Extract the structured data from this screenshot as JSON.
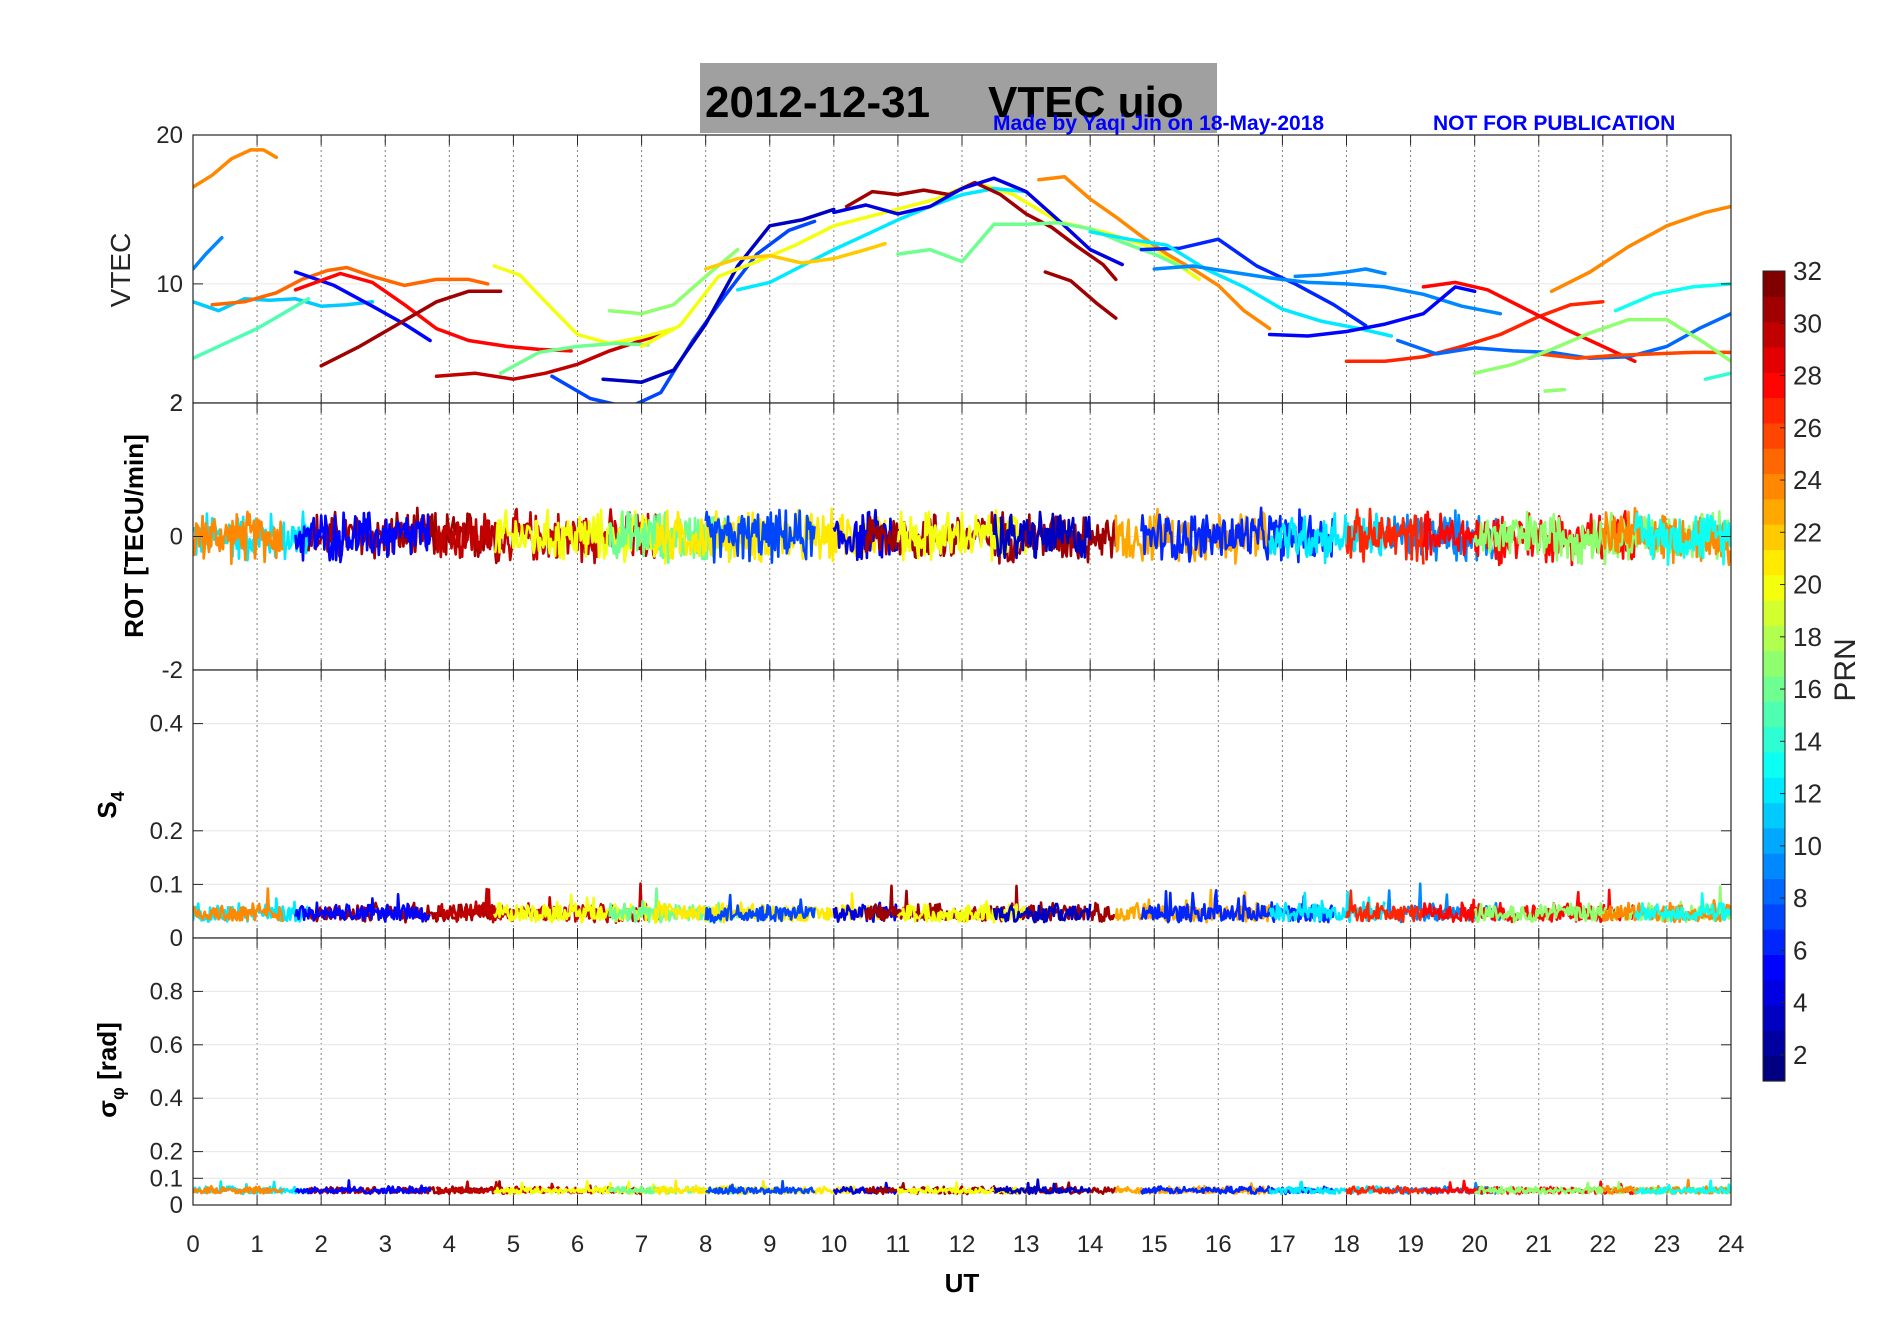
{
  "chart_data": {
    "type": "line",
    "title_date": "2012-12-31",
    "title_name": "VTEC  uio",
    "credit": "Made by Yaqi Jin on 18-May-2018",
    "notice": "NOT FOR PUBLICATION",
    "xlabel": "UT",
    "xlim": [
      0,
      24
    ],
    "xticks": [
      "0",
      "1",
      "2",
      "3",
      "4",
      "5",
      "6",
      "7",
      "8",
      "9",
      "10",
      "11",
      "12",
      "13",
      "14",
      "15",
      "16",
      "17",
      "18",
      "19",
      "20",
      "21",
      "22",
      "23",
      "24"
    ],
    "colorbar": {
      "label": "PRN",
      "range": [
        1,
        32
      ],
      "ticks": [
        "2",
        "4",
        "6",
        "8",
        "10",
        "12",
        "14",
        "16",
        "18",
        "20",
        "22",
        "24",
        "26",
        "28",
        "30",
        "32"
      ]
    },
    "panels": [
      {
        "id": "vtec",
        "ylabel": "VTEC",
        "ylim": [
          2,
          20
        ],
        "yticks": [
          "2",
          "10",
          "20"
        ],
        "series": [
          {
            "prn": 24,
            "x": [
              0.0,
              0.3,
              0.6,
              0.9,
              1.1,
              1.3
            ],
            "y": [
              16.5,
              17.3,
              18.4,
              19.0,
              19.0,
              18.5
            ]
          },
          {
            "prn": 9,
            "x": [
              0.0,
              0.2,
              0.45
            ],
            "y": [
              11.0,
              12.0,
              13.1
            ]
          },
          {
            "prn": 11,
            "x": [
              0.0,
              0.4,
              0.8,
              1.2,
              1.6,
              2.0,
              2.4,
              2.8
            ],
            "y": [
              8.8,
              8.2,
              9.0,
              8.9,
              9.0,
              8.5,
              8.6,
              8.8
            ]
          },
          {
            "prn": 15,
            "x": [
              0.0,
              0.5,
              1.0,
              1.4,
              1.8
            ],
            "y": [
              5.0,
              6.0,
              7.0,
              8.0,
              9.0
            ]
          },
          {
            "prn": 25,
            "x": [
              0.3,
              0.8,
              1.3,
              1.7,
              2.1,
              2.4,
              2.8,
              3.3,
              3.8,
              4.3,
              4.6
            ],
            "y": [
              8.6,
              8.8,
              9.4,
              10.3,
              10.9,
              11.1,
              10.5,
              9.9,
              10.3,
              10.3,
              10.0
            ]
          },
          {
            "prn": 5,
            "x": [
              1.6,
              2.2,
              2.8,
              3.3,
              3.7
            ],
            "y": [
              10.8,
              9.9,
              8.5,
              7.3,
              6.2
            ]
          },
          {
            "prn": 28,
            "x": [
              1.6,
              2.3,
              2.8,
              3.3,
              3.8,
              4.3,
              4.9,
              5.4,
              5.9
            ],
            "y": [
              9.6,
              10.7,
              10.1,
              8.6,
              7.0,
              6.2,
              5.8,
              5.6,
              5.5
            ]
          },
          {
            "prn": 31,
            "x": [
              2.0,
              2.6,
              3.2,
              3.8,
              4.3,
              4.8
            ],
            "y": [
              4.5,
              5.8,
              7.3,
              8.8,
              9.5,
              9.5
            ]
          },
          {
            "prn": 30,
            "x": [
              3.8,
              4.4,
              5.0,
              5.5,
              6.0,
              6.5,
              7.0,
              7.3
            ],
            "y": [
              3.8,
              4.0,
              3.6,
              4.0,
              4.6,
              5.5,
              6.2,
              6.6
            ]
          },
          {
            "prn": 20,
            "x": [
              4.7,
              5.1,
              5.5,
              6.0,
              6.5,
              7.0,
              7.5
            ],
            "y": [
              11.2,
              10.6,
              8.8,
              6.6,
              6.0,
              6.4,
              7.0
            ]
          },
          {
            "prn": 16,
            "x": [
              4.8,
              5.4,
              6.0,
              6.6,
              7.1
            ],
            "y": [
              4.0,
              5.4,
              5.8,
              6.0,
              5.9
            ]
          },
          {
            "prn": 7,
            "x": [
              5.6,
              6.2,
              6.8,
              7.3,
              7.8,
              8.3,
              8.8,
              9.3,
              9.7
            ],
            "y": [
              3.8,
              2.3,
              1.7,
              2.7,
              6.2,
              9.2,
              12.0,
              13.6,
              14.2
            ]
          },
          {
            "prn": 3,
            "x": [
              6.4,
              7.0,
              7.5,
              8.0,
              8.5,
              9.0,
              9.5,
              10.0
            ],
            "y": [
              3.6,
              3.4,
              4.2,
              7.3,
              11.2,
              13.9,
              14.3,
              15.0
            ]
          },
          {
            "prn": 17,
            "x": [
              6.5,
              7.0,
              7.5,
              8.0,
              8.5
            ],
            "y": [
              8.2,
              8.0,
              8.6,
              10.5,
              12.3
            ]
          },
          {
            "prn": 20,
            "x": [
              7.0,
              7.6,
              8.2,
              8.8,
              9.4,
              10.0,
              10.8,
              11.6,
              12.2,
              12.8,
              13.5,
              14.2,
              15.0,
              15.7
            ],
            "y": [
              5.8,
              7.2,
              10.5,
              11.5,
              12.6,
              13.9,
              14.8,
              15.7,
              16.8,
              16.0,
              14.2,
              13.5,
              12.4,
              10.3
            ]
          },
          {
            "prn": 12,
            "x": [
              8.5,
              9.0,
              9.5,
              10.0,
              10.5,
              11.0,
              11.5,
              12.0,
              12.5,
              13.0
            ],
            "y": [
              9.6,
              10.1,
              11.2,
              12.3,
              13.3,
              14.3,
              15.2,
              16.0,
              16.4,
              16.2
            ]
          },
          {
            "prn": 22,
            "x": [
              8.0,
              8.5,
              9.0,
              9.5,
              10.0,
              10.5,
              10.8
            ],
            "y": [
              11.0,
              11.7,
              11.9,
              11.4,
              11.7,
              12.3,
              12.7
            ]
          },
          {
            "prn": 31,
            "x": [
              10.2,
              10.6,
              11.0,
              11.4,
              11.8,
              12.2,
              12.6,
              13.0,
              13.4,
              13.8,
              14.2,
              14.4
            ],
            "y": [
              15.2,
              16.2,
              16.0,
              16.3,
              16.0,
              16.8,
              16.0,
              14.7,
              13.8,
              12.5,
              11.3,
              10.3
            ]
          },
          {
            "prn": 31,
            "x": [
              13.3,
              13.7,
              14.1,
              14.4
            ],
            "y": [
              10.8,
              10.2,
              8.7,
              7.7
            ]
          },
          {
            "prn": 4,
            "x": [
              10.0,
              10.5,
              11.0,
              11.5,
              12.0,
              12.5,
              13.0,
              13.5,
              14.0,
              14.5
            ],
            "y": [
              14.8,
              15.3,
              14.7,
              15.2,
              16.4,
              17.1,
              16.2,
              14.3,
              12.3,
              11.3
            ]
          },
          {
            "prn": 16,
            "x": [
              11.0,
              11.5,
              12.0,
              12.5,
              13.0,
              13.5,
              14.0,
              14.5,
              15.0,
              15.5
            ],
            "y": [
              12.0,
              12.3,
              11.5,
              14.0,
              14.0,
              14.1,
              13.7,
              12.8,
              12.0,
              11.0
            ]
          },
          {
            "prn": 24,
            "x": [
              13.2,
              13.6,
              14.0,
              14.4,
              14.8,
              15.2,
              15.6,
              16.0,
              16.4,
              16.8
            ],
            "y": [
              17.0,
              17.2,
              15.7,
              14.5,
              13.2,
              12.0,
              11.0,
              9.9,
              8.2,
              7.0
            ]
          },
          {
            "prn": 6,
            "x": [
              14.8,
              15.4,
              16.0,
              16.6,
              17.2,
              17.8,
              18.3
            ],
            "y": [
              12.3,
              12.4,
              13.0,
              11.2,
              10.0,
              8.6,
              7.2
            ]
          },
          {
            "prn": 12,
            "x": [
              14.0,
              14.6,
              15.2,
              15.8,
              16.4,
              17.0,
              17.6,
              18.2,
              18.7
            ],
            "y": [
              13.5,
              13.0,
              12.6,
              11.0,
              9.8,
              8.3,
              7.5,
              7.0,
              6.5
            ]
          },
          {
            "prn": 9,
            "x": [
              15.0,
              15.6,
              16.2,
              16.8,
              17.4,
              18.0,
              18.6,
              19.2,
              19.8,
              20.4
            ],
            "y": [
              11.0,
              11.2,
              10.8,
              10.4,
              10.1,
              10.0,
              9.8,
              9.3,
              8.5,
              8.0
            ]
          },
          {
            "prn": 9,
            "x": [
              17.2,
              17.6,
              18.0,
              18.3,
              18.6
            ],
            "y": [
              10.5,
              10.6,
              10.8,
              11.0,
              10.7
            ]
          },
          {
            "prn": 5,
            "x": [
              16.8,
              17.4,
              18.0,
              18.6,
              19.2,
              19.7,
              20.0
            ],
            "y": [
              6.6,
              6.5,
              6.8,
              7.3,
              8.0,
              9.8,
              9.5
            ]
          },
          {
            "prn": 27,
            "x": [
              18.0,
              18.6,
              19.2,
              19.8,
              20.4,
              21.0,
              21.5,
              22.0
            ],
            "y": [
              4.8,
              4.8,
              5.1,
              5.8,
              6.6,
              7.8,
              8.6,
              8.8
            ]
          },
          {
            "prn": 28,
            "x": [
              19.2,
              19.7,
              20.2,
              20.8,
              21.4,
              22.0,
              22.5
            ],
            "y": [
              9.8,
              10.1,
              9.6,
              8.3,
              7.0,
              5.8,
              4.8
            ]
          },
          {
            "prn": 8,
            "x": [
              18.8,
              19.4,
              20.0,
              20.6,
              21.2,
              21.8,
              22.4,
              23.0,
              23.5,
              24.0
            ],
            "y": [
              6.2,
              5.3,
              5.7,
              5.5,
              5.4,
              5.0,
              5.1,
              5.8,
              7.0,
              8.0
            ]
          },
          {
            "prn": 26,
            "x": [
              21.0,
              21.6,
              22.2,
              22.8,
              23.4,
              24.0
            ],
            "y": [
              5.3,
              5.0,
              5.2,
              5.3,
              5.4,
              5.4
            ]
          },
          {
            "prn": 17,
            "x": [
              20.0,
              20.6,
              21.2,
              21.8,
              22.4,
              23.0,
              23.6,
              24.0
            ],
            "y": [
              4.0,
              4.6,
              5.6,
              6.7,
              7.6,
              7.6,
              6.0,
              4.8
            ]
          },
          {
            "prn": 24,
            "x": [
              21.2,
              21.8,
              22.4,
              23.0,
              23.6,
              24.0
            ],
            "y": [
              9.5,
              10.8,
              12.5,
              13.9,
              14.8,
              15.2
            ]
          },
          {
            "prn": 13,
            "x": [
              22.2,
              22.8,
              23.4,
              24.0
            ],
            "y": [
              8.2,
              9.3,
              9.8,
              10.0
            ]
          },
          {
            "prn": 14,
            "x": [
              23.6,
              24.0
            ],
            "y": [
              3.6,
              4.0
            ]
          },
          {
            "prn": 17,
            "x": [
              21.1,
              21.4
            ],
            "y": [
              2.8,
              2.9
            ]
          }
        ]
      },
      {
        "id": "rot",
        "ylabel": "ROT [TECU/min]",
        "ylim": [
          -2,
          2
        ],
        "yticks": [
          "-2",
          "0",
          "2"
        ],
        "noise_band": {
          "center": 0,
          "amplitude": 0.3
        }
      },
      {
        "id": "s4",
        "ylabel": "S4",
        "ylim": [
          0,
          0.5
        ],
        "yticks": [
          "0",
          "0.1",
          "0.2",
          "0.4"
        ],
        "noise_band": {
          "center": 0.04,
          "amplitude": 0.02
        }
      },
      {
        "id": "sigma",
        "ylabel": "σφ [rad]",
        "ylim": [
          0,
          1
        ],
        "yticks": [
          "0",
          "0.1",
          "0.2",
          "0.4",
          "0.6",
          "0.8"
        ],
        "noise_band": {
          "center": 0.05,
          "amplitude": 0.015
        }
      }
    ]
  }
}
